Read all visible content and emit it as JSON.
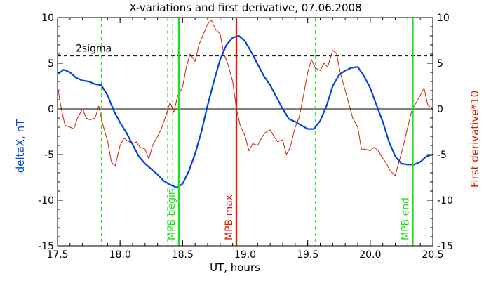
{
  "chart_data": {
    "type": "line",
    "title": "X-variations and first derivative, 07.06.2008",
    "xlabel": "UT, hours",
    "ylabel_left": "deltaX, nT",
    "ylabel_right": "First derivative*10",
    "xlim": [
      17.5,
      20.5
    ],
    "ylim": [
      -15,
      10
    ],
    "x_ticks": [
      "17.5",
      "18.0",
      "18.5",
      "19.0",
      "19.5",
      "20.0",
      "20.5"
    ],
    "y_ticks_left": [
      "10",
      "5",
      "0",
      "-5",
      "-10",
      "-15"
    ],
    "y_ticks_right": [
      "10",
      "5",
      "0",
      "-5",
      "-10",
      "-15"
    ],
    "threshold": {
      "label": "2sigma",
      "value": 5.8
    },
    "zero_line": 0,
    "colors": {
      "deltaX": "#0044dd",
      "derivative": "#cc2200",
      "mpb": "#22dd22",
      "max": "#dd2200"
    },
    "vlines_solid": [
      {
        "x": 18.47,
        "label": "MPB begin",
        "color": "#22dd22"
      },
      {
        "x": 18.93,
        "label": "MPB max",
        "color": "#dd2200"
      },
      {
        "x": 20.34,
        "label": "MPB end",
        "color": "#22dd22"
      }
    ],
    "vlines_dashed": [
      {
        "x": 17.85,
        "color": "#22dd22"
      },
      {
        "x": 18.38,
        "color": "#22dd22"
      },
      {
        "x": 18.42,
        "color": "#22dd22"
      },
      {
        "x": 19.56,
        "color": "#22dd22"
      }
    ],
    "series": [
      {
        "name": "deltaX, nT",
        "color": "#0044dd",
        "x": [
          17.5,
          17.55,
          17.6,
          17.65,
          17.7,
          17.75,
          17.8,
          17.85,
          17.9,
          17.95,
          18.0,
          18.05,
          18.1,
          18.15,
          18.2,
          18.25,
          18.3,
          18.35,
          18.4,
          18.45,
          18.47,
          18.5,
          18.55,
          18.6,
          18.65,
          18.7,
          18.75,
          18.8,
          18.85,
          18.9,
          18.95,
          19.0,
          19.05,
          19.1,
          19.15,
          19.2,
          19.25,
          19.3,
          19.35,
          19.4,
          19.45,
          19.5,
          19.55,
          19.6,
          19.65,
          19.7,
          19.75,
          19.8,
          19.85,
          19.9,
          19.95,
          20.0,
          20.05,
          20.1,
          20.15,
          20.2,
          20.25,
          20.3,
          20.35,
          20.4,
          20.45,
          20.5
        ],
        "values": [
          3.8,
          4.3,
          4.0,
          3.4,
          3.1,
          3.0,
          2.7,
          2.6,
          1.5,
          -0.2,
          -1.5,
          -2.6,
          -3.9,
          -5.2,
          -6.0,
          -6.6,
          -7.2,
          -7.9,
          -8.3,
          -8.6,
          -8.5,
          -8.2,
          -6.8,
          -4.9,
          -2.5,
          0.4,
          3.0,
          5.4,
          7.0,
          7.8,
          8.0,
          7.4,
          6.2,
          4.9,
          3.6,
          2.6,
          1.3,
          0.0,
          -1.1,
          -1.4,
          -1.8,
          -2.2,
          -2.2,
          -1.3,
          0.3,
          2.5,
          3.7,
          4.2,
          4.5,
          4.6,
          3.6,
          2.3,
          0.4,
          -1.4,
          -3.6,
          -5.2,
          -6.0,
          -6.1,
          -6.1,
          -5.8,
          -5.2,
          -5.0
        ]
      },
      {
        "name": "First derivative*10",
        "color": "#cc2200",
        "x": [
          17.5,
          17.53,
          17.56,
          17.6,
          17.63,
          17.66,
          17.7,
          17.73,
          17.76,
          17.8,
          17.83,
          17.86,
          17.9,
          17.93,
          17.96,
          18.0,
          18.03,
          18.06,
          18.1,
          18.13,
          18.16,
          18.2,
          18.23,
          18.26,
          18.3,
          18.33,
          18.36,
          18.4,
          18.43,
          18.46,
          18.5,
          18.53,
          18.56,
          18.6,
          18.63,
          18.66,
          18.7,
          18.73,
          18.76,
          18.8,
          18.83,
          18.86,
          18.9,
          18.93,
          18.96,
          19.0,
          19.03,
          19.06,
          19.1,
          19.13,
          19.16,
          19.2,
          19.23,
          19.26,
          19.3,
          19.33,
          19.36,
          19.4,
          19.43,
          19.46,
          19.5,
          19.53,
          19.56,
          19.6,
          19.63,
          19.66,
          19.7,
          19.73,
          19.76,
          19.8,
          19.83,
          19.86,
          19.9,
          19.93,
          19.96,
          20.0,
          20.03,
          20.06,
          20.1,
          20.13,
          20.16,
          20.2,
          20.23,
          20.26,
          20.3,
          20.33,
          20.36,
          20.4,
          20.43,
          20.46,
          20.5
        ],
        "values": [
          2.5,
          0.0,
          -1.8,
          -2.0,
          -2.2,
          -1.0,
          0.0,
          -1.0,
          -1.2,
          -1.0,
          0.3,
          -1.6,
          -3.5,
          -5.8,
          -6.3,
          -4.0,
          -3.2,
          -3.5,
          -3.8,
          -3.6,
          -4.2,
          -4.4,
          -5.5,
          -4.0,
          -3.0,
          -2.2,
          -1.0,
          0.7,
          -0.4,
          1.4,
          2.4,
          4.6,
          6.0,
          5.2,
          7.0,
          8.0,
          9.3,
          9.7,
          8.8,
          8.2,
          6.0,
          5.0,
          3.0,
          0.0,
          -1.8,
          -3.0,
          -4.6,
          -3.8,
          -4.0,
          -3.2,
          -2.6,
          -2.3,
          -3.0,
          -3.6,
          -3.4,
          -5.0,
          -4.2,
          -2.0,
          -1.0,
          1.0,
          4.0,
          5.4,
          4.5,
          4.2,
          5.0,
          4.6,
          6.4,
          6.1,
          4.0,
          2.0,
          0.5,
          -1.0,
          -2.0,
          -4.4,
          -4.4,
          -4.6,
          -4.2,
          -4.5,
          -5.4,
          -6.0,
          -6.8,
          -7.3,
          -5.8,
          -4.3,
          -2.0,
          -0.3,
          0.5,
          1.5,
          2.3,
          0.4,
          0.0
        ]
      }
    ]
  }
}
